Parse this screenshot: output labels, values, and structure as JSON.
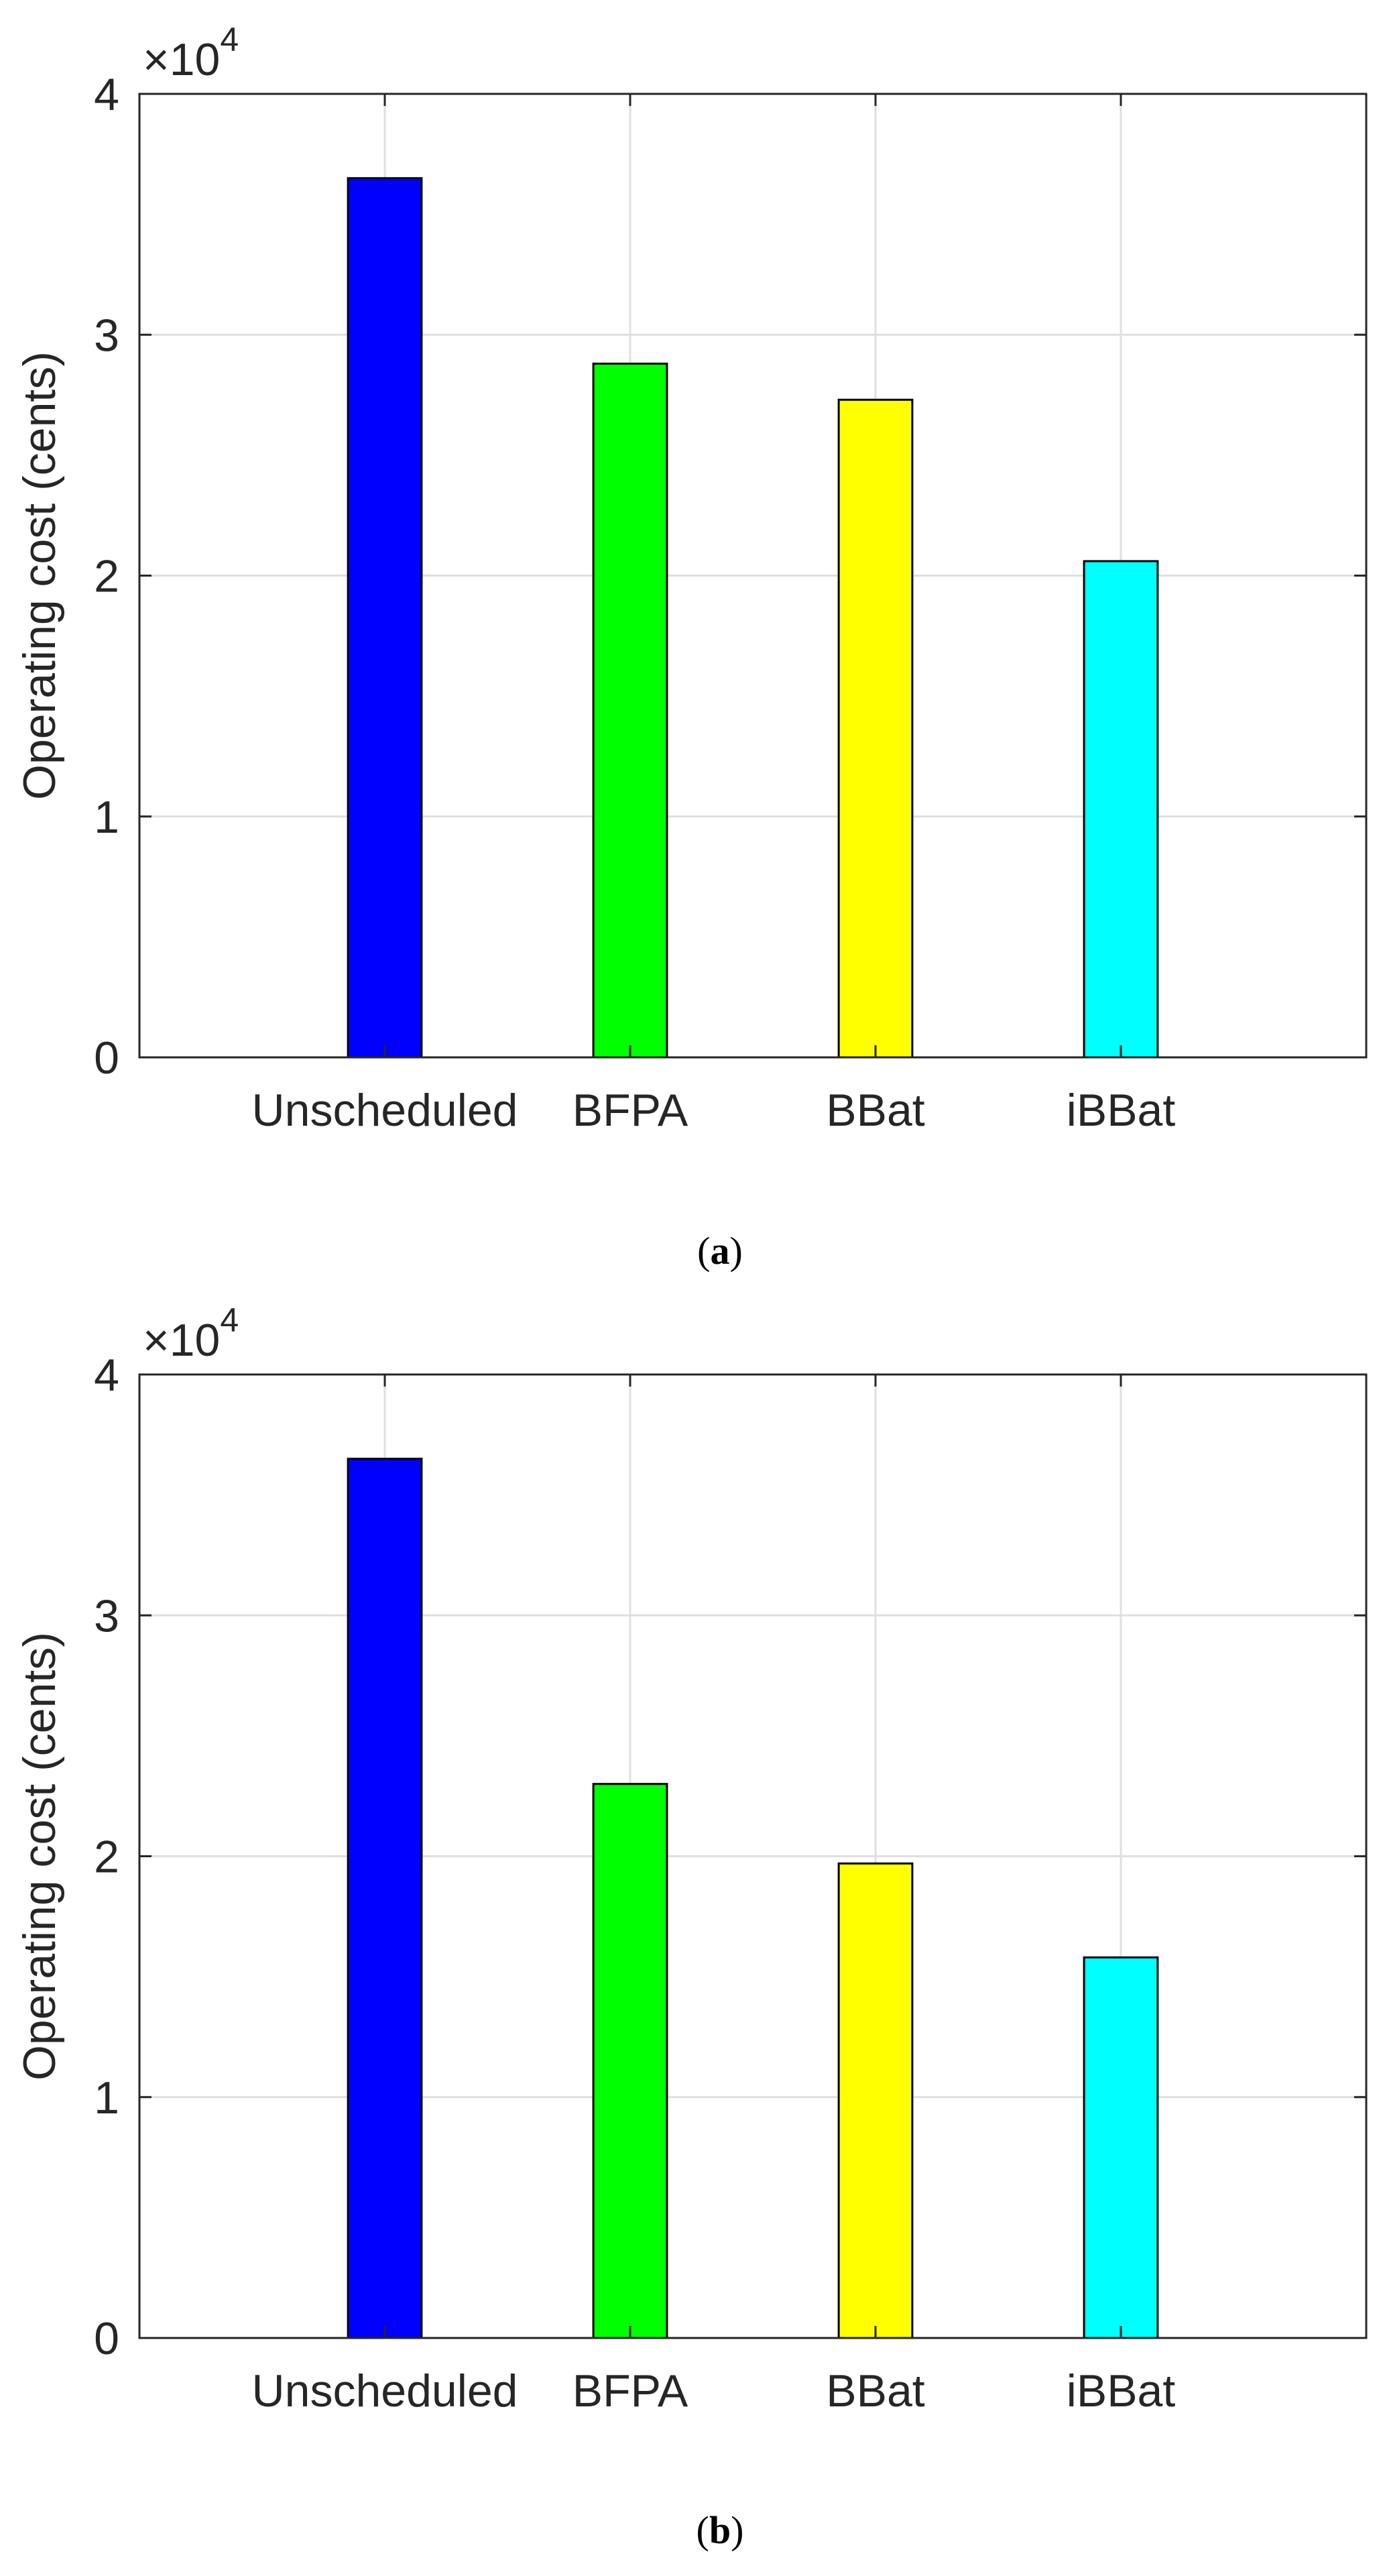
{
  "chart_data": [
    {
      "type": "bar",
      "panel_label": "a",
      "categories": [
        "Unscheduled",
        "BFPA",
        "BBat",
        "iBBat"
      ],
      "values": [
        36500,
        28800,
        27300,
        20600
      ],
      "colors": [
        "#0000ff",
        "#00ff00",
        "#ffff00",
        "#00ffff"
      ],
      "ylabel": "Operating cost  (cents)",
      "xlabel": "",
      "title": "",
      "ylim": [
        0,
        40000
      ],
      "yticks": [
        0,
        1,
        2,
        3,
        4
      ],
      "y_scale_exponent": "4",
      "y_scale_prefix": "×10",
      "grid": true
    },
    {
      "type": "bar",
      "panel_label": "b",
      "categories": [
        "Unscheduled",
        "BFPA",
        "BBat",
        "iBBat"
      ],
      "values": [
        36500,
        23000,
        19700,
        15800
      ],
      "colors": [
        "#0000ff",
        "#00ff00",
        "#ffff00",
        "#00ffff"
      ],
      "ylabel": "Operating cost (cents)",
      "xlabel": "",
      "title": "",
      "ylim": [
        0,
        40000
      ],
      "yticks": [
        0,
        1,
        2,
        3,
        4
      ],
      "y_scale_exponent": "4",
      "y_scale_prefix": "×10",
      "grid": true
    }
  ],
  "colors": {
    "axis": "#262626",
    "grid": "#dfdfdf",
    "bar_edge": "#000000"
  }
}
